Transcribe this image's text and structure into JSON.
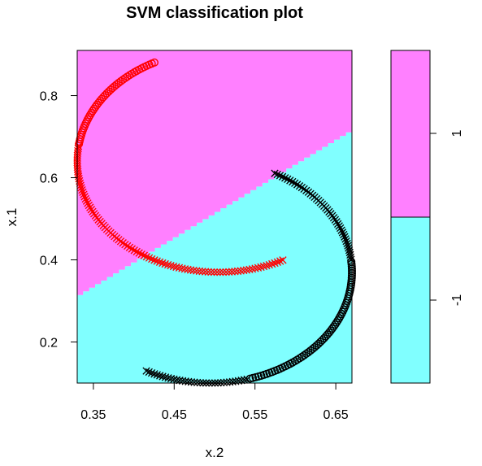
{
  "chart_data": {
    "type": "scatter",
    "title": "SVM classification plot",
    "xlabel": "x.2",
    "ylabel": "x.1",
    "xlim": [
      0.33,
      0.67
    ],
    "ylim": [
      0.1,
      0.91
    ],
    "xticks": [
      "0.35",
      "0.45",
      "0.55",
      "0.65"
    ],
    "yticks": [
      "0.2",
      "0.4",
      "0.6",
      "0.8"
    ],
    "region_colors": {
      "1": "#ff80ff",
      "-1": "#80ffff"
    },
    "decision_boundary": {
      "x": [
        0.33,
        0.67
      ],
      "y": [
        0.31,
        0.715
      ]
    },
    "legend": {
      "placement": "right",
      "labels": [
        "1",
        "-1"
      ]
    },
    "series": [
      {
        "color": "#ff0000",
        "class": "1",
        "marker": "x",
        "x": [
          0.33,
          0.6
        ],
        "y": [
          0.37,
          0.91
        ]
      },
      {
        "color": "#ff0000",
        "class": "1",
        "marker": "o",
        "x": [
          0.33,
          0.47
        ],
        "y": [
          0.68,
          0.87
        ]
      },
      {
        "color": "#000000",
        "class": "-1",
        "marker": "x",
        "x": [
          0.4,
          0.67
        ],
        "y": [
          0.1,
          0.64
        ]
      },
      {
        "color": "#000000",
        "class": "-1",
        "marker": "o",
        "x": [
          0.49,
          0.67
        ],
        "y": [
          0.12,
          0.4
        ]
      }
    ]
  }
}
